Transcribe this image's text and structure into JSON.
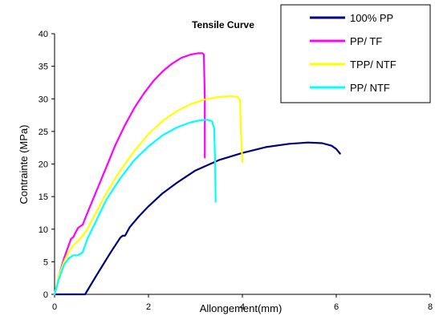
{
  "chart_data": {
    "type": "line",
    "title": "Tensile Curve",
    "xlabel": "Allongement(mm)",
    "ylabel": "Contrainte (MPa)",
    "xlim": [
      0,
      8
    ],
    "ylim": [
      0,
      40
    ],
    "xticks": [
      0,
      2,
      4,
      6,
      8
    ],
    "yticks": [
      0,
      5,
      10,
      15,
      20,
      25,
      30,
      35,
      40
    ],
    "grid": false,
    "legend_position": "top-right",
    "series": [
      {
        "name": "100% PP",
        "color": "#000080",
        "x": [
          0.0,
          0.65,
          0.9,
          1.2,
          1.4,
          1.45,
          1.5,
          1.6,
          1.8,
          2.0,
          2.3,
          2.6,
          3.0,
          3.5,
          4.0,
          4.5,
          5.0,
          5.4,
          5.7,
          5.9,
          6.0,
          6.08
        ],
        "y": [
          0.0,
          0.0,
          3.0,
          6.5,
          8.7,
          9.0,
          9.0,
          10.3,
          12.0,
          13.5,
          15.5,
          17.1,
          19.0,
          20.6,
          21.7,
          22.6,
          23.1,
          23.3,
          23.2,
          22.8,
          22.3,
          21.6
        ]
      },
      {
        "name": "PP/ TF",
        "color": "#ff00ff",
        "x": [
          0.0,
          0.1,
          0.2,
          0.3,
          0.35,
          0.4,
          0.45,
          0.5,
          0.6,
          0.7,
          0.9,
          1.1,
          1.3,
          1.5,
          1.7,
          1.9,
          2.1,
          2.3,
          2.5,
          2.7,
          2.9,
          3.05,
          3.15,
          3.18,
          3.2,
          3.2
        ],
        "y": [
          0.0,
          3.0,
          5.5,
          7.5,
          8.5,
          8.8,
          9.5,
          10.2,
          10.7,
          12.5,
          16.0,
          19.5,
          23.0,
          26.0,
          28.6,
          30.8,
          32.7,
          34.2,
          35.4,
          36.3,
          36.8,
          37.0,
          37.0,
          36.8,
          30.0,
          21.0
        ]
      },
      {
        "name": "TPP/ NTF",
        "color": "#ffff00",
        "x": [
          0.0,
          0.1,
          0.2,
          0.3,
          0.4,
          0.5,
          0.6,
          0.7,
          0.9,
          1.1,
          1.4,
          1.7,
          2.0,
          2.3,
          2.6,
          2.9,
          3.2,
          3.5,
          3.75,
          3.9,
          3.95,
          3.97,
          4.0
        ],
        "y": [
          0.0,
          3.0,
          5.0,
          6.5,
          7.5,
          8.2,
          9.0,
          10.0,
          12.8,
          15.5,
          19.0,
          22.0,
          24.6,
          26.6,
          28.1,
          29.2,
          29.9,
          30.3,
          30.4,
          30.3,
          29.8,
          25.0,
          20.3
        ]
      },
      {
        "name": "PP/ NTF",
        "color": "#00ffff",
        "x": [
          0.0,
          0.1,
          0.2,
          0.3,
          0.4,
          0.5,
          0.55,
          0.6,
          0.7,
          0.9,
          1.1,
          1.4,
          1.7,
          2.0,
          2.3,
          2.6,
          2.9,
          3.1,
          3.25,
          3.35,
          3.4,
          3.42,
          3.43
        ],
        "y": [
          0.0,
          2.5,
          4.5,
          5.5,
          6.0,
          6.0,
          6.2,
          6.5,
          8.5,
          11.5,
          14.5,
          17.8,
          20.6,
          22.7,
          24.4,
          25.6,
          26.4,
          26.7,
          26.8,
          26.6,
          25.5,
          20.0,
          14.2
        ]
      }
    ]
  }
}
